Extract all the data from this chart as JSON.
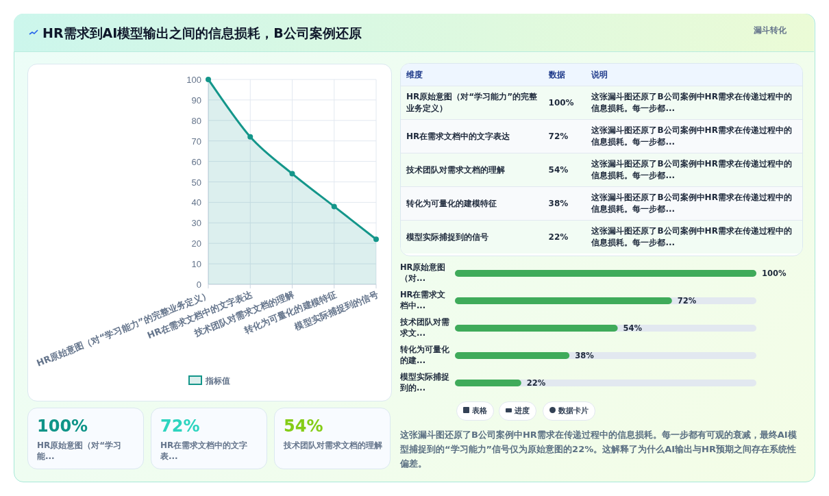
{
  "chart_data": [
    {
      "type": "area",
      "title": "HR需求到AI模型输出之间的信息损耗，B公司案例还原",
      "categories": [
        "HR原始意图（对“学习能力”的完整业务定义）",
        "HR在需求文档中的文字表达",
        "技术团队对需求文档的理解",
        "转化为可量化的建模特征",
        "模型实际捕捉到的信号"
      ],
      "series": [
        {
          "name": "指标值",
          "color": "#14968a",
          "values": [
            100,
            72,
            54,
            38,
            22
          ]
        }
      ],
      "ylim": [
        0,
        100
      ],
      "yticks": [
        0,
        10,
        20,
        30,
        40,
        50,
        60,
        70,
        80,
        90,
        100
      ],
      "grid": true,
      "legend": "bottom",
      "marker": "circle"
    },
    {
      "type": "bar",
      "orientation": "horizontal",
      "categories": [
        "HR原始意图（对...",
        "HR在需求文档中...",
        "技术团队对需求文...",
        "转化为可量化的建...",
        "模型实际捕捉到的..."
      ],
      "values": [
        100,
        72,
        54,
        38,
        22
      ],
      "color": "#3fab5a",
      "value_labels": [
        "100%",
        "72%",
        "54%",
        "38%",
        "22%"
      ]
    },
    {
      "type": "other",
      "annotations": [
        "漏斗转化",
        "维度",
        "数据",
        "说明",
        "HR原始意图（对“学习能力”的完整业务定义）",
        "100%",
        "这张漏斗图还原了B公司案例中HR需求在传递过程中的信息损耗。每一步都...",
        "HR在需求文档中的文字表达",
        "72%",
        "这张漏斗图还原了B公司案例中HR需求在传递过程中的信息损耗。每一步都...",
        "技术团队对需求文档的理解",
        "54%",
        "这张漏斗图还原了B公司案例中HR需求在传递过程中的信息损耗。每一步都...",
        "转化为可量化的建模特征",
        "38%",
        "这张漏斗图还原了B公司案例中HR需求在传递过程中的信息损耗。每一步都...",
        "模型实际捕捉到的信号",
        "22%",
        "这张漏斗图还原了B公司案例中HR需求在传递过程中的信息损耗。每一步都...",
        "100%",
        "HR原始意图（对“学习能...",
        "72%",
        "HR在需求文档中的文字表...",
        "54%",
        "技术团队对需求文档的理解",
        "表格",
        "进度",
        "数据卡片",
        "这张漏斗图还原了B公司案例中HR需求在传递过程中的信息损耗。每一步都有可观的衰减，最终AI模型捕捉到的“学习能力”信号仅为原始意图的22%。这解释了为什么AI输出与HR预期之间存在系统性偏差。"
      ]
    }
  ]
}
